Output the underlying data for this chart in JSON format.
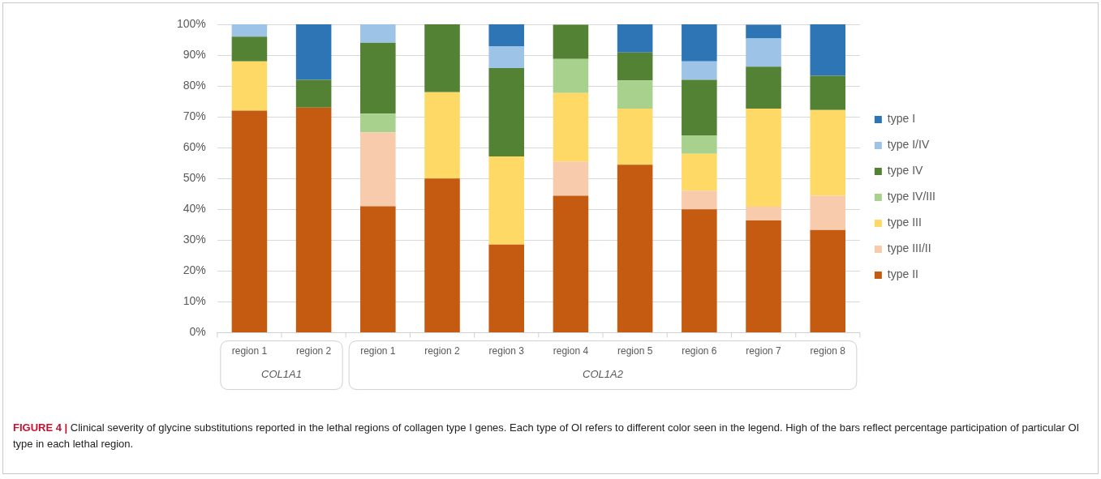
{
  "chart_data": {
    "type": "bar",
    "stacked": true,
    "categories": [
      "region 1",
      "region 2",
      "region 1",
      "region 2",
      "region 3",
      "region 4",
      "region 5",
      "region 6",
      "region 7",
      "region 8"
    ],
    "series": [
      {
        "name": "type II",
        "color": "#c55a11",
        "values": [
          72,
          73,
          41,
          50,
          28.6,
          44.4,
          54.5,
          40,
          36.4,
          33.3
        ]
      },
      {
        "name": "type III/II",
        "color": "#f8cbad",
        "values": [
          null,
          null,
          24,
          null,
          null,
          11.1,
          null,
          6,
          4.5,
          11.1
        ]
      },
      {
        "name": "type III",
        "color": "#ffd966",
        "values": [
          16,
          null,
          null,
          28,
          28.6,
          22.2,
          18.2,
          12,
          31.8,
          27.8
        ]
      },
      {
        "name": "type IV/III",
        "color": "#a9d18e",
        "values": [
          null,
          null,
          6,
          null,
          null,
          11.1,
          9.1,
          6,
          null,
          null
        ]
      },
      {
        "name": "type IV",
        "color": "#548235",
        "values": [
          8,
          9,
          23,
          22,
          28.6,
          11.1,
          9.1,
          18,
          13.6,
          11.1
        ]
      },
      {
        "name": "type I/IV",
        "color": "#9dc3e6",
        "values": [
          4,
          null,
          6,
          null,
          7.1,
          null,
          null,
          6,
          9.1,
          null
        ]
      },
      {
        "name": "type I",
        "color": "#2e75b6",
        "values": [
          null,
          18,
          null,
          null,
          7.1,
          null,
          9.1,
          12,
          4.5,
          16.7
        ]
      }
    ],
    "ylim": [
      0,
      100
    ],
    "yticks": [
      {
        "value": 0,
        "label": "0%"
      },
      {
        "value": 10,
        "label": "10%"
      },
      {
        "value": 20,
        "label": "20%"
      },
      {
        "value": 30,
        "label": "30%"
      },
      {
        "value": 40,
        "label": "40%"
      },
      {
        "value": 50,
        "label": "50%"
      },
      {
        "value": 60,
        "label": "60%"
      },
      {
        "value": 70,
        "label": "70%"
      },
      {
        "value": 80,
        "label": "80%"
      },
      {
        "value": 90,
        "label": "90%"
      },
      {
        "value": 100,
        "label": "100%"
      }
    ],
    "grid": "y",
    "legend": "right",
    "annotations": [
      "COL1A1",
      "COL1A2",
      "FIGURE 4 | Clinical severity of glycine substitutions reported in the lethal regions of collagen type I genes. Each type of OI refers to different color seen in the legend. High of the bars reflect percentage participation of particular OI type in each lethal region."
    ]
  }
}
